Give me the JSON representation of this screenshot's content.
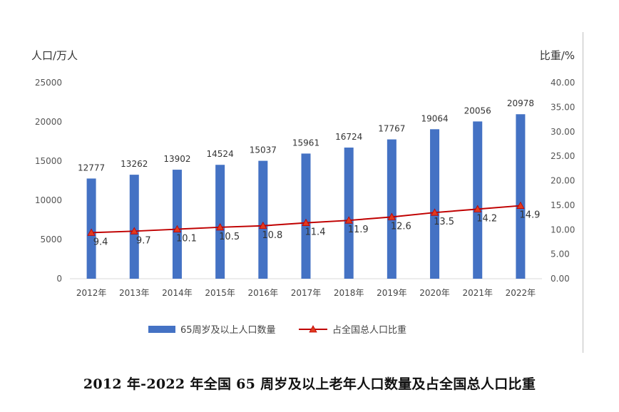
{
  "caption": "2012 年-2022 年全国 65 周岁及以上老年人口数量及占全国总人口比重",
  "chart_data": {
    "type": "bar",
    "ylabel": "人口/万人",
    "y2label": "比重/%",
    "ylim": [
      0,
      25000
    ],
    "y2lim": [
      0,
      40
    ],
    "yticks": [
      "0",
      "5000",
      "10000",
      "15000",
      "20000",
      "25000"
    ],
    "y2ticks": [
      "0.00",
      "5.00",
      "10.00",
      "15.00",
      "20.00",
      "25.00",
      "30.00",
      "35.00",
      "40.00"
    ],
    "categories": [
      "2012年",
      "2013年",
      "2014年",
      "2015年",
      "2016年",
      "2017年",
      "2018年",
      "2019年",
      "2020年",
      "2021年",
      "2022年"
    ],
    "series": [
      {
        "name": "65周岁及以上人口数量",
        "type": "bar",
        "axis": "left",
        "color": "#4472c4",
        "values": [
          12777,
          13262,
          13902,
          14524,
          15037,
          15961,
          16724,
          17767,
          19064,
          20056,
          20978
        ],
        "labels": [
          "12777",
          "13262",
          "13902",
          "14524",
          "15037",
          "15961",
          "16724",
          "17767",
          "19064",
          "20056",
          "20978"
        ]
      },
      {
        "name": "占全国总人口比重",
        "type": "line",
        "axis": "right",
        "color": "#c00000",
        "marker_color": "#e03a1e",
        "values": [
          9.4,
          9.7,
          10.1,
          10.5,
          10.8,
          11.4,
          11.9,
          12.6,
          13.5,
          14.2,
          14.9
        ],
        "labels": [
          "9.4",
          "9.7",
          "10.1",
          "10.5",
          "10.8",
          "11.4",
          "11.9",
          "12.6",
          "13.5",
          "14.2",
          "14.9"
        ]
      }
    ],
    "legend": "bottom"
  }
}
